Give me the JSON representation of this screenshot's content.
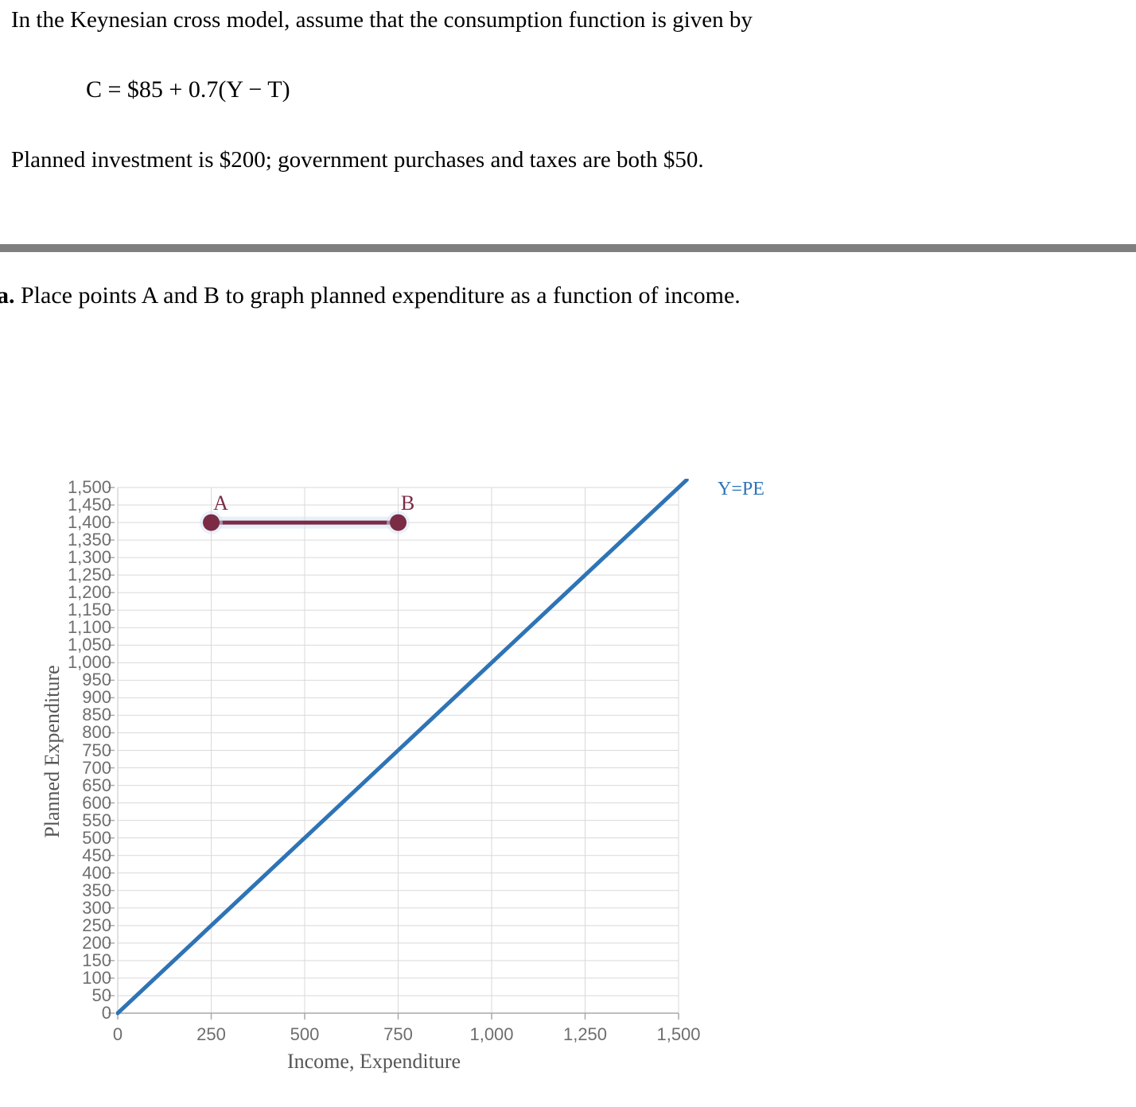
{
  "problem": {
    "intro": "In the Keynesian cross model, assume that the consumption function is given by",
    "formula": "C = $85 + 0.7(Y − T)",
    "detail": "Planned investment is $200; government purchases and taxes are both $50.",
    "part_label": "a.",
    "part_text": " Place points A and B to graph planned expenditure as a function of income."
  },
  "divider": {
    "color": "#7F7F7F"
  },
  "chart_data": {
    "type": "line",
    "xlabel": "Income, Expenditure",
    "ylabel": "Planned Expenditure",
    "xlim": [
      0,
      1500
    ],
    "ylim": [
      0,
      1500
    ],
    "x_tick_step": 250,
    "y_tick_step": 50,
    "grid": true,
    "x_tick_labels": [
      "0",
      "250",
      "500",
      "750",
      "1,000",
      "1,250",
      "1,500"
    ],
    "y_tick_labels": [
      "0",
      "50",
      "100",
      "150",
      "200",
      "250",
      "300",
      "350",
      "400",
      "450",
      "500",
      "550",
      "600",
      "650",
      "700",
      "750",
      "800",
      "850",
      "900",
      "950",
      "1,000",
      "1,050",
      "1,100",
      "1,150",
      "1,200",
      "1,250",
      "1,300",
      "1,350",
      "1,400",
      "1,450",
      "1,500"
    ],
    "series": [
      {
        "name": "y-equals-pe-line",
        "label": "Y=PE",
        "color": "#2E74B5",
        "points": [
          [
            0,
            0
          ],
          [
            1500,
            1500
          ]
        ],
        "markers": false,
        "overshoot": 22
      },
      {
        "name": "planned-expenditure-segment",
        "label": "",
        "color": "#7C2B45",
        "points": [
          [
            250,
            1400
          ],
          [
            750,
            1400
          ]
        ],
        "markers": true,
        "halo": true,
        "point_labels": [
          "A",
          "B"
        ]
      }
    ],
    "colors": {
      "grid": "#D9D9D9",
      "axis": "#A9A9A9",
      "tick_label": "#6E6E6E",
      "axis_title": "#565656",
      "halo": "#D6E4F4"
    }
  }
}
